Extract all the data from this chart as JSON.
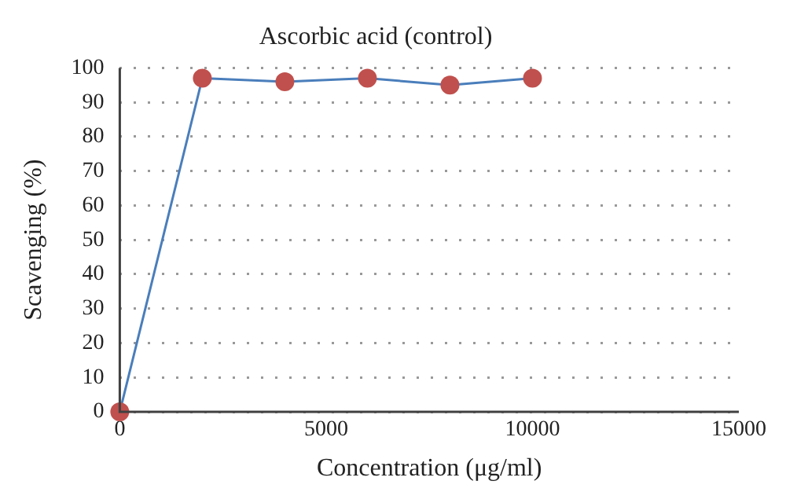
{
  "chart_data": {
    "type": "line",
    "title": "Ascorbic acid (control)",
    "xlabel": "Concentration (μg/ml)",
    "ylabel": "Scavenging (%)",
    "x": [
      0,
      2000,
      4000,
      6000,
      8000,
      10000
    ],
    "series": [
      {
        "color": "#4a7ebb",
        "colors": [
          "#c0504d",
          "#c0504d",
          "#c0504d",
          "#c0504d",
          "#c0504d",
          "#c0504d"
        ],
        "values": [
          0,
          97,
          96,
          97,
          95,
          97
        ]
      }
    ],
    "xlim": [
      0,
      15000
    ],
    "xticks": [
      0,
      5000,
      10000,
      15000
    ],
    "ylim": [
      0,
      100
    ],
    "yticks": [
      0,
      10,
      20,
      30,
      40,
      50,
      60,
      70,
      80,
      90,
      100
    ],
    "grid": "y",
    "legend": false,
    "marker": "circle",
    "line_style": "solid"
  }
}
